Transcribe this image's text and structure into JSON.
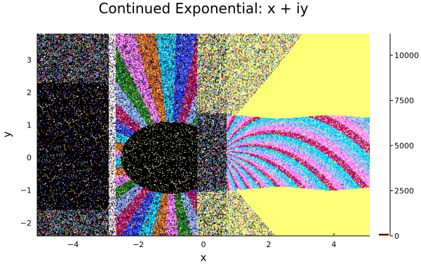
{
  "chart_data": {
    "type": "heatmap",
    "title": "Continued Exponential: x + iy",
    "xlabel": "x",
    "ylabel": "y",
    "xlim": [
      -5.1,
      5.1
    ],
    "ylim": [
      -2.4,
      3.8
    ],
    "xticks": [
      {
        "value": -4,
        "label": "−4"
      },
      {
        "value": -2,
        "label": "−2"
      },
      {
        "value": 0,
        "label": "0"
      },
      {
        "value": 2,
        "label": "2"
      },
      {
        "value": 4,
        "label": "4"
      }
    ],
    "yticks": [
      {
        "value": -2,
        "label": "−2"
      },
      {
        "value": -1,
        "label": "−1"
      },
      {
        "value": 0,
        "label": "0"
      },
      {
        "value": 1,
        "label": "1"
      },
      {
        "value": 2,
        "label": "2"
      },
      {
        "value": 3,
        "label": "3"
      }
    ],
    "colorbar": {
      "range": [
        0,
        11200
      ],
      "ticks": [
        {
          "value": 0,
          "label": "0"
        },
        {
          "value": 2500,
          "label": "2500"
        },
        {
          "value": 5000,
          "label": "5000"
        },
        {
          "value": 7500,
          "label": "7500"
        },
        {
          "value": 10000,
          "label": "10000"
        }
      ]
    },
    "grid": false,
    "legend": "none",
    "palette": [
      "#000000",
      "#00d4ff",
      "#e07010",
      "#ff7fff",
      "#108a10",
      "#8ab4ff",
      "#c01060",
      "#2040ff",
      "#ffff77",
      "#ffffff"
    ],
    "background_colors": {
      "converged": "#ffff77",
      "chaotic": "#000000"
    }
  }
}
